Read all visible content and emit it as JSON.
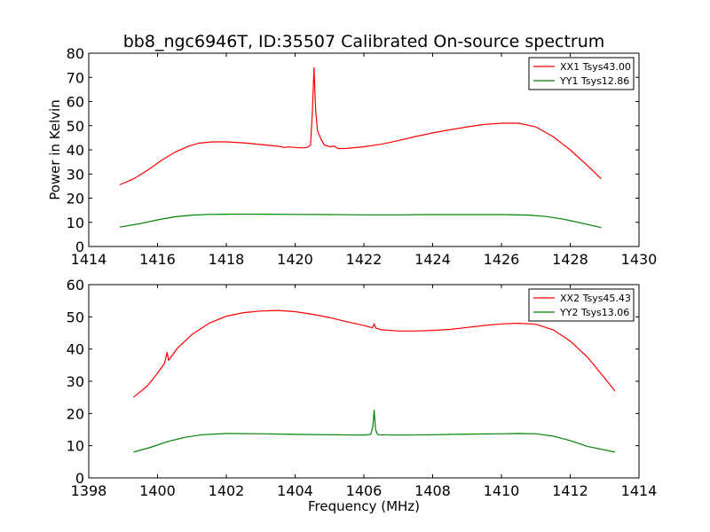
{
  "figure": {
    "title": "bb8_ngc6946T, ID:35507 Calibrated On-source spectrum",
    "ylabel": "Power in Kelvin",
    "xlabel": "Frequency (MHz)"
  },
  "chart_data": [
    {
      "type": "line",
      "xlim": [
        1414,
        1430
      ],
      "ylim": [
        0,
        80
      ],
      "xticks": [
        1414,
        1416,
        1418,
        1420,
        1422,
        1424,
        1426,
        1428,
        1430
      ],
      "yticks": [
        0,
        10,
        20,
        30,
        40,
        50,
        60,
        70,
        80
      ],
      "legend_position": "top-right",
      "grid": false,
      "series": [
        {
          "name": "XX1 Tsys43.00",
          "color": "#ff0000",
          "points": [
            [
              1414.9,
              25.5
            ],
            [
              1415.3,
              28
            ],
            [
              1415.7,
              31.5
            ],
            [
              1416.1,
              35.5
            ],
            [
              1416.5,
              39
            ],
            [
              1416.9,
              41.5
            ],
            [
              1417.2,
              42.8
            ],
            [
              1417.6,
              43.3
            ],
            [
              1418.0,
              43.3
            ],
            [
              1418.5,
              42.9
            ],
            [
              1419.0,
              42.2
            ],
            [
              1419.5,
              41.5
            ],
            [
              1419.7,
              41.0
            ],
            [
              1419.8,
              41.2
            ],
            [
              1420.0,
              41.0
            ],
            [
              1420.2,
              40.8
            ],
            [
              1420.35,
              41.0
            ],
            [
              1420.45,
              42.0
            ],
            [
              1420.5,
              55.0
            ],
            [
              1420.55,
              74.0
            ],
            [
              1420.6,
              56.0
            ],
            [
              1420.65,
              48.0
            ],
            [
              1420.75,
              44.5
            ],
            [
              1420.85,
              42.0
            ],
            [
              1421.0,
              41.3
            ],
            [
              1421.15,
              41.5
            ],
            [
              1421.25,
              40.5
            ],
            [
              1421.5,
              40.6
            ],
            [
              1422.0,
              41.3
            ],
            [
              1422.5,
              42.3
            ],
            [
              1423.0,
              43.8
            ],
            [
              1423.5,
              45.5
            ],
            [
              1424.0,
              47.0
            ],
            [
              1424.5,
              48.3
            ],
            [
              1425.0,
              49.5
            ],
            [
              1425.5,
              50.5
            ],
            [
              1426.0,
              51.0
            ],
            [
              1426.5,
              51.0
            ],
            [
              1427.0,
              49.5
            ],
            [
              1427.5,
              45.5
            ],
            [
              1428.0,
              40.0
            ],
            [
              1428.5,
              33.5
            ],
            [
              1428.9,
              28.0
            ]
          ]
        },
        {
          "name": "YY1 Tsys12.86",
          "color": "#008000",
          "points": [
            [
              1414.9,
              8.0
            ],
            [
              1415.5,
              9.5
            ],
            [
              1416.0,
              11.0
            ],
            [
              1416.5,
              12.3
            ],
            [
              1417.0,
              13.0
            ],
            [
              1417.5,
              13.3
            ],
            [
              1418.5,
              13.4
            ],
            [
              1420.0,
              13.3
            ],
            [
              1421.0,
              13.2
            ],
            [
              1422.0,
              13.1
            ],
            [
              1423.0,
              13.1
            ],
            [
              1424.0,
              13.2
            ],
            [
              1425.0,
              13.2
            ],
            [
              1426.0,
              13.2
            ],
            [
              1426.8,
              13.0
            ],
            [
              1427.3,
              12.4
            ],
            [
              1427.8,
              11.3
            ],
            [
              1428.3,
              9.8
            ],
            [
              1428.9,
              7.8
            ]
          ]
        }
      ]
    },
    {
      "type": "line",
      "xlim": [
        1398,
        1414
      ],
      "ylim": [
        0,
        60
      ],
      "xticks": [
        1398,
        1400,
        1402,
        1404,
        1406,
        1408,
        1410,
        1412,
        1414
      ],
      "yticks": [
        0,
        10,
        20,
        30,
        40,
        50,
        60
      ],
      "legend_position": "top-right",
      "grid": false,
      "series": [
        {
          "name": "XX2 Tsys45.43",
          "color": "#ff0000",
          "points": [
            [
              1399.3,
              25.0
            ],
            [
              1399.7,
              28.5
            ],
            [
              1400.0,
              32.5
            ],
            [
              1400.2,
              35.5
            ],
            [
              1400.28,
              39.0
            ],
            [
              1400.32,
              36.5
            ],
            [
              1400.6,
              40.5
            ],
            [
              1401.0,
              44.5
            ],
            [
              1401.5,
              48.0
            ],
            [
              1402.0,
              50.2
            ],
            [
              1402.5,
              51.3
            ],
            [
              1403.0,
              51.8
            ],
            [
              1403.5,
              52.0
            ],
            [
              1404.0,
              51.6
            ],
            [
              1404.5,
              50.8
            ],
            [
              1405.0,
              49.8
            ],
            [
              1405.5,
              48.5
            ],
            [
              1406.0,
              47.3
            ],
            [
              1406.25,
              46.6
            ],
            [
              1406.3,
              47.8
            ],
            [
              1406.35,
              46.5
            ],
            [
              1406.5,
              46.0
            ],
            [
              1407.0,
              45.6
            ],
            [
              1407.5,
              45.6
            ],
            [
              1408.0,
              45.8
            ],
            [
              1408.5,
              46.1
            ],
            [
              1409.0,
              46.7
            ],
            [
              1409.5,
              47.3
            ],
            [
              1410.0,
              47.8
            ],
            [
              1410.5,
              48.0
            ],
            [
              1411.0,
              47.7
            ],
            [
              1411.5,
              46.0
            ],
            [
              1412.0,
              42.5
            ],
            [
              1412.5,
              37.5
            ],
            [
              1413.0,
              31.0
            ],
            [
              1413.3,
              27.0
            ]
          ]
        },
        {
          "name": "YY2 Tsys13.06",
          "color": "#008000",
          "points": [
            [
              1399.3,
              8.0
            ],
            [
              1399.8,
              9.5
            ],
            [
              1400.3,
              11.3
            ],
            [
              1400.8,
              12.6
            ],
            [
              1401.3,
              13.4
            ],
            [
              1402.0,
              13.8
            ],
            [
              1403.0,
              13.7
            ],
            [
              1404.0,
              13.5
            ],
            [
              1405.0,
              13.4
            ],
            [
              1406.0,
              13.3
            ],
            [
              1406.2,
              13.5
            ],
            [
              1406.26,
              16.0
            ],
            [
              1406.3,
              21.0
            ],
            [
              1406.34,
              15.0
            ],
            [
              1406.4,
              13.4
            ],
            [
              1407.0,
              13.3
            ],
            [
              1408.0,
              13.4
            ],
            [
              1409.0,
              13.6
            ],
            [
              1410.0,
              13.7
            ],
            [
              1410.5,
              13.8
            ],
            [
              1411.0,
              13.7
            ],
            [
              1411.5,
              13.0
            ],
            [
              1412.0,
              11.6
            ],
            [
              1412.5,
              9.8
            ],
            [
              1413.3,
              8.0
            ]
          ]
        }
      ]
    }
  ]
}
